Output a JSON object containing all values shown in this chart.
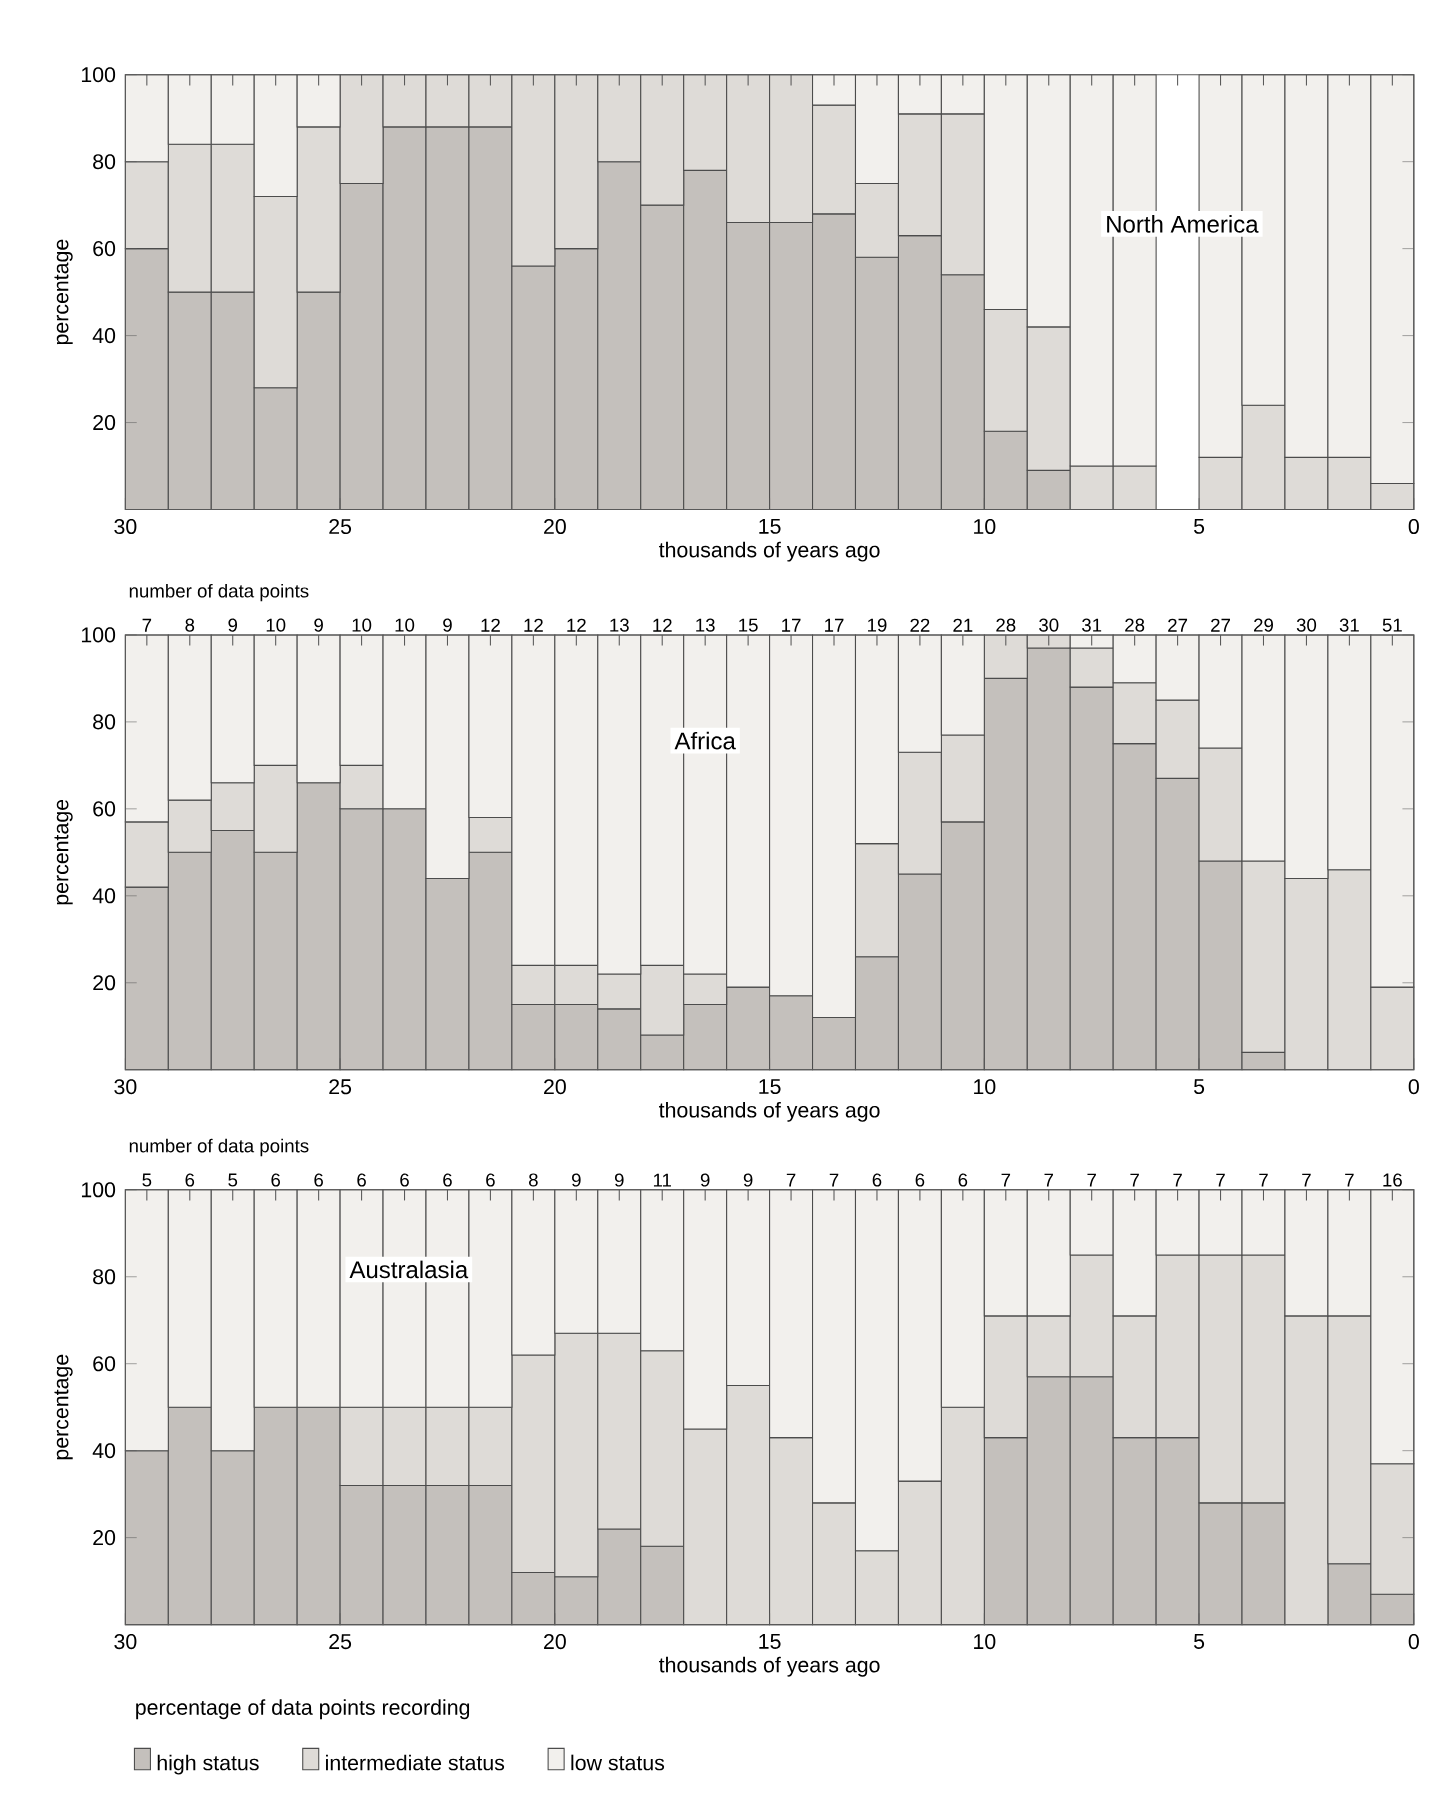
{
  "chart_data": [
    {
      "type": "bar",
      "stacked": true,
      "title": "North America",
      "xlabel": "thousands of years ago",
      "ylabel": "percentage",
      "x": [
        29.5,
        28.5,
        27.5,
        26.5,
        25.5,
        24.5,
        23.5,
        22.5,
        21.5,
        20.5,
        19.5,
        18.5,
        17.5,
        16.5,
        15.5,
        14.5,
        13.5,
        12.5,
        11.5,
        10.5,
        9.5,
        8.5,
        7.5,
        6.5,
        5.5,
        4.5,
        3.5,
        2.5,
        1.5,
        0.5
      ],
      "xlim": [
        30,
        0
      ],
      "xticks": [
        30,
        25,
        20,
        15,
        10,
        5,
        0
      ],
      "ylim": [
        0,
        100
      ],
      "yticks": [
        20,
        40,
        60,
        80,
        100
      ],
      "series": [
        {
          "color": "#c4c0bc",
          "values": [
            60,
            50,
            50,
            28,
            50,
            75,
            88,
            88,
            88,
            56,
            60,
            80,
            70,
            78,
            66,
            66,
            68,
            58,
            63,
            54,
            18,
            9,
            0,
            0,
            null,
            0,
            0,
            0,
            0,
            0
          ]
        },
        {
          "color": "#dedbd7",
          "values": [
            20,
            34,
            34,
            44,
            38,
            25,
            12,
            12,
            12,
            44,
            40,
            20,
            30,
            22,
            34,
            34,
            25,
            17,
            28,
            37,
            28,
            33,
            10,
            10,
            null,
            12,
            24,
            12,
            12,
            6
          ]
        },
        {
          "color": "#f2f0ed",
          "values": [
            20,
            16,
            16,
            28,
            12,
            0,
            0,
            0,
            0,
            0,
            0,
            0,
            0,
            0,
            0,
            0,
            7,
            25,
            9,
            9,
            54,
            58,
            90,
            90,
            null,
            88,
            76,
            88,
            88,
            94
          ]
        }
      ]
    },
    {
      "type": "bar",
      "stacked": true,
      "title": "Africa",
      "xlabel": "thousands of years ago",
      "ylabel": "percentage",
      "x": [
        29.5,
        28.5,
        27.5,
        26.5,
        25.5,
        24.5,
        23.5,
        22.5,
        21.5,
        20.5,
        19.5,
        18.5,
        17.5,
        16.5,
        15.5,
        14.5,
        13.5,
        12.5,
        11.5,
        10.5,
        9.5,
        8.5,
        7.5,
        6.5,
        5.5,
        4.5,
        3.5,
        2.5,
        1.5,
        0.5
      ],
      "xlim": [
        30,
        0
      ],
      "xticks": [
        30,
        25,
        20,
        15,
        10,
        5,
        0
      ],
      "ylim": [
        0,
        100
      ],
      "yticks": [
        20,
        40,
        60,
        80,
        100
      ],
      "annotations": [
        "number of data points",
        {
          "text": "7",
          "x": 29.5,
          "y": 100
        },
        {
          "text": "8",
          "x": 28.5,
          "y": 100
        },
        {
          "text": "9",
          "x": 27.5,
          "y": 100
        },
        {
          "text": "10",
          "x": 26.5,
          "y": 100
        },
        {
          "text": "9",
          "x": 25.5,
          "y": 100
        },
        {
          "text": "10",
          "x": 24.5,
          "y": 100
        },
        {
          "text": "10",
          "x": 23.5,
          "y": 100
        },
        {
          "text": "9",
          "x": 22.5,
          "y": 100
        },
        {
          "text": "12",
          "x": 21.5,
          "y": 100
        },
        {
          "text": "12",
          "x": 20.5,
          "y": 100
        },
        {
          "text": "12",
          "x": 19.5,
          "y": 100
        },
        {
          "text": "13",
          "x": 18.5,
          "y": 100
        },
        {
          "text": "12",
          "x": 17.5,
          "y": 100
        },
        {
          "text": "13",
          "x": 16.5,
          "y": 100
        },
        {
          "text": "15",
          "x": 15.5,
          "y": 100
        },
        {
          "text": "17",
          "x": 14.5,
          "y": 100
        },
        {
          "text": "17",
          "x": 13.5,
          "y": 100
        },
        {
          "text": "19",
          "x": 12.5,
          "y": 100
        },
        {
          "text": "22",
          "x": 11.5,
          "y": 100
        },
        {
          "text": "21",
          "x": 10.5,
          "y": 100
        },
        {
          "text": "28",
          "x": 9.5,
          "y": 100
        },
        {
          "text": "30",
          "x": 8.5,
          "y": 100
        },
        {
          "text": "31",
          "x": 7.5,
          "y": 100
        },
        {
          "text": "28",
          "x": 6.5,
          "y": 100
        },
        {
          "text": "27",
          "x": 5.5,
          "y": 100
        },
        {
          "text": "27",
          "x": 4.5,
          "y": 100
        },
        {
          "text": "29",
          "x": 3.5,
          "y": 100
        },
        {
          "text": "30",
          "x": 2.5,
          "y": 100
        },
        {
          "text": "31",
          "x": 1.5,
          "y": 100
        },
        {
          "text": "51",
          "x": 0.5,
          "y": 100
        }
      ],
      "series": [
        {
          "color": "#c4c0bc",
          "values": [
            42,
            50,
            55,
            50,
            66,
            60,
            60,
            44,
            50,
            15,
            15,
            14,
            8,
            15,
            19,
            17,
            12,
            26,
            45,
            57,
            90,
            97,
            88,
            75,
            67,
            48,
            4,
            0,
            0,
            0
          ]
        },
        {
          "color": "#dedbd7",
          "values": [
            15,
            12,
            11,
            20,
            0,
            10,
            0,
            0,
            8,
            9,
            9,
            8,
            16,
            7,
            0,
            0,
            0,
            26,
            28,
            20,
            10,
            3,
            9,
            14,
            18,
            26,
            44,
            44,
            46,
            19
          ]
        },
        {
          "color": "#f2f0ed",
          "values": [
            43,
            38,
            34,
            30,
            34,
            30,
            40,
            56,
            42,
            76,
            76,
            78,
            76,
            78,
            81,
            83,
            88,
            48,
            27,
            23,
            0,
            0,
            3,
            11,
            15,
            26,
            52,
            56,
            54,
            81
          ]
        }
      ]
    },
    {
      "type": "bar",
      "stacked": true,
      "title": "Australasia",
      "xlabel": "thousands of years ago",
      "ylabel": "percentage",
      "legend": "bottom left",
      "legend_title": "percentage of data points recording",
      "x": [
        29.5,
        28.5,
        27.5,
        26.5,
        25.5,
        24.5,
        23.5,
        22.5,
        21.5,
        20.5,
        19.5,
        18.5,
        17.5,
        16.5,
        15.5,
        14.5,
        13.5,
        12.5,
        11.5,
        10.5,
        9.5,
        8.5,
        7.5,
        6.5,
        5.5,
        4.5,
        3.5,
        2.5,
        1.5,
        0.5
      ],
      "xlim": [
        30,
        0
      ],
      "xticks": [
        30,
        25,
        20,
        15,
        10,
        5,
        0
      ],
      "ylim": [
        0,
        100
      ],
      "yticks": [
        20,
        40,
        60,
        80,
        100
      ],
      "annotations": [
        "number of data points",
        {
          "text": "5",
          "x": 29.5,
          "y": 100
        },
        {
          "text": "6",
          "x": 28.5,
          "y": 100
        },
        {
          "text": "5",
          "x": 27.5,
          "y": 100
        },
        {
          "text": "6",
          "x": 26.5,
          "y": 100
        },
        {
          "text": "6",
          "x": 25.5,
          "y": 100
        },
        {
          "text": "6",
          "x": 24.5,
          "y": 100
        },
        {
          "text": "6",
          "x": 23.5,
          "y": 100
        },
        {
          "text": "6",
          "x": 22.5,
          "y": 100
        },
        {
          "text": "6",
          "x": 21.5,
          "y": 100
        },
        {
          "text": "8",
          "x": 20.5,
          "y": 100
        },
        {
          "text": "9",
          "x": 19.5,
          "y": 100
        },
        {
          "text": "9",
          "x": 18.5,
          "y": 100
        },
        {
          "text": "11",
          "x": 17.5,
          "y": 100
        },
        {
          "text": "9",
          "x": 16.5,
          "y": 100
        },
        {
          "text": "9",
          "x": 15.5,
          "y": 100
        },
        {
          "text": "7",
          "x": 14.5,
          "y": 100
        },
        {
          "text": "7",
          "x": 13.5,
          "y": 100
        },
        {
          "text": "6",
          "x": 12.5,
          "y": 100
        },
        {
          "text": "6",
          "x": 11.5,
          "y": 100
        },
        {
          "text": "6",
          "x": 10.5,
          "y": 100
        },
        {
          "text": "7",
          "x": 9.5,
          "y": 100
        },
        {
          "text": "7",
          "x": 8.5,
          "y": 100
        },
        {
          "text": "7",
          "x": 7.5,
          "y": 100
        },
        {
          "text": "7",
          "x": 6.5,
          "y": 100
        },
        {
          "text": "7",
          "x": 5.5,
          "y": 100
        },
        {
          "text": "7",
          "x": 4.5,
          "y": 100
        },
        {
          "text": "7",
          "x": 3.5,
          "y": 100
        },
        {
          "text": "7",
          "x": 2.5,
          "y": 100
        },
        {
          "text": "7",
          "x": 1.5,
          "y": 100
        },
        {
          "text": "16",
          "x": 0.5,
          "y": 100
        }
      ],
      "series": [
        {
          "name": "high status",
          "color": "#c4c0bc",
          "values": [
            40,
            50,
            40,
            50,
            50,
            32,
            32,
            32,
            32,
            12,
            11,
            22,
            18,
            0,
            0,
            0,
            0,
            0,
            0,
            0,
            43,
            57,
            57,
            43,
            43,
            28,
            28,
            0,
            14,
            7
          ]
        },
        {
          "name": "intermediate status",
          "color": "#dedbd7",
          "values": [
            0,
            0,
            0,
            0,
            0,
            18,
            18,
            18,
            18,
            50,
            56,
            45,
            45,
            45,
            55,
            43,
            28,
            17,
            33,
            50,
            28,
            14,
            28,
            28,
            42,
            57,
            57,
            71,
            57,
            30
          ]
        },
        {
          "name": "low status",
          "color": "#f2f0ed",
          "values": [
            60,
            50,
            60,
            50,
            50,
            50,
            50,
            50,
            50,
            38,
            33,
            33,
            37,
            55,
            45,
            57,
            72,
            83,
            67,
            50,
            29,
            29,
            15,
            29,
            15,
            15,
            15,
            29,
            29,
            63
          ]
        }
      ]
    }
  ]
}
